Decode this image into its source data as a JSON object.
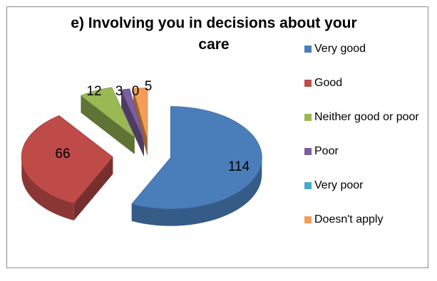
{
  "chart_data": {
    "type": "pie",
    "title": "e)  Involving you in decisions about your\ncare",
    "categories": [
      "Very good",
      "Good",
      "Neither good or poor",
      "Poor",
      "Very poor",
      "Doesn't apply"
    ],
    "values": [
      114,
      66,
      12,
      3,
      0,
      5
    ],
    "colors": [
      "#4a7ebb",
      "#be4b48",
      "#98b954",
      "#7d5fa0",
      "#46aac5",
      "#f59d56"
    ],
    "legend_position": "right",
    "style": "3d-exploded"
  }
}
